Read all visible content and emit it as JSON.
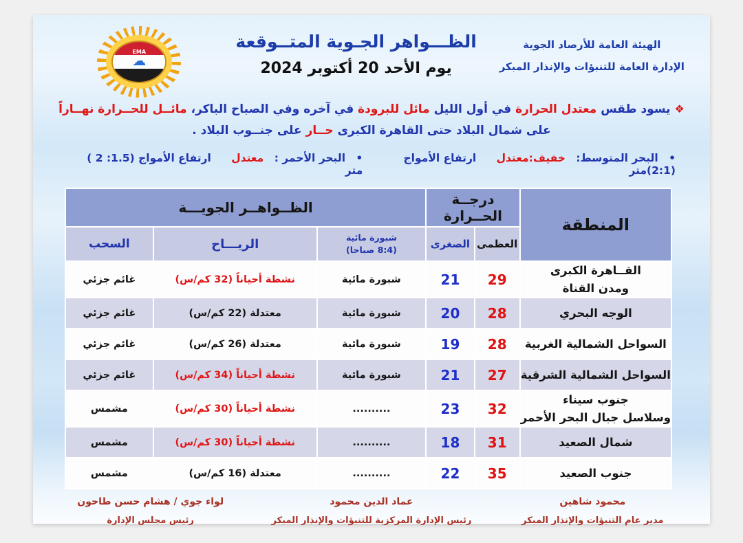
{
  "colors": {
    "outer_bg": "#f1f0f1",
    "title_blue": "#1c3ca8",
    "text_blue": "#2135ad",
    "accent_red": "#e01616",
    "max_red": "#e01212",
    "min_blue": "#1e2ec9",
    "header_bg": "#8f9ed2",
    "subheader_bg": "#c7cae3",
    "row_alt_bg": "#d5d7e9",
    "row_bg": "#fdfdfe",
    "signature_red": "#a93226",
    "sun_orange": "#f2a312",
    "sun_gold": "#ffd24a"
  },
  "header": {
    "org_line1": "الهيئة العامة للأرصاد الجوية",
    "org_line2": "الإدارة العامة للتنبؤات والإنذار المبكر",
    "title": "الظـــواهر الجـوية المتــوقعة",
    "date": "يوم  الأحد 20 أكتوبر 2024",
    "logo_text": "EMA",
    "logo_cloud": "☁"
  },
  "summary": {
    "bullet": "❖",
    "segments": [
      {
        "text": "يسود طقس",
        "red": false
      },
      {
        "text": "معتدل الحرارة",
        "red": true
      },
      {
        "text": "في أول الليل",
        "red": false
      },
      {
        "text": "مائل للبرودة",
        "red": true
      },
      {
        "text": "في آخره وفي الصباح الباكر،",
        "red": false
      },
      {
        "text": "مائــل للحــرارة نهــاراً",
        "red": true
      },
      {
        "text": "على شمال البلاد حتى القاهرة الكبرى",
        "red": false
      },
      {
        "text": "حــار",
        "red": true
      },
      {
        "text": "على جنــوب البلاد .",
        "red": false
      }
    ]
  },
  "seas": {
    "bullet": "•",
    "mediterranean": {
      "label": "البحر المتوسط:",
      "state": "خفيف:معتدل",
      "waves": "ارتفاع الأمواج (2:1)متر"
    },
    "red_sea": {
      "label": "البحر الأحمر :",
      "state": "معتدل",
      "waves": "ارتفاع الأمواج (1.5: 2 ) متر"
    }
  },
  "table": {
    "region_header": "المنطقة",
    "temp_header": "درجــة\nالحــرارة",
    "phenomena_header": "الظــواهــر الجويـــة",
    "sub_headers": {
      "max": "العظمى",
      "min": "الصغرى",
      "mist": "شبورة مائية\n(8:4 صباحا)",
      "wind": "الريـــاح",
      "clouds": "السحب"
    },
    "rows": [
      {
        "region": "القــاهرة الكبرى\nومدن القناة",
        "max": "29",
        "min": "21",
        "mist": "شبورة مائية",
        "wind": "نشطة أحياناً (32 كم/س)",
        "wind_active": true,
        "clouds": "غائم جزئي"
      },
      {
        "region": "الوجه البحري",
        "max": "28",
        "min": "20",
        "mist": "شبورة مائية",
        "wind": "معتدلة (22 كم/س)",
        "wind_active": false,
        "clouds": "غائم جزئي"
      },
      {
        "region": "السواحل الشمالية الغربية",
        "max": "28",
        "min": "19",
        "mist": "شبورة مائية",
        "wind": "معتدلة (26 كم/س)",
        "wind_active": false,
        "clouds": "غائم جزئي"
      },
      {
        "region": "السواحل الشمالية الشرقية",
        "max": "27",
        "min": "21",
        "mist": "شبورة مائية",
        "wind": "نشطة أحياناً (34 كم/س)",
        "wind_active": true,
        "clouds": "غائم جزئي"
      },
      {
        "region": "جنوب سيناء\nوسلاسل جبال البحر الأحمر",
        "max": "32",
        "min": "23",
        "mist": "..........",
        "wind": "نشطة أحياناً (30 كم/س)",
        "wind_active": true,
        "clouds": "مشمس"
      },
      {
        "region": "شمال الصعيد",
        "max": "31",
        "min": "18",
        "mist": "..........",
        "wind": "نشطة أحياناً (30 كم/س)",
        "wind_active": true,
        "clouds": "مشمس"
      },
      {
        "region": "جنوب الصعيد",
        "max": "35",
        "min": "22",
        "mist": "..........",
        "wind": "معتدلة (16 كم/س)",
        "wind_active": false,
        "clouds": "مشمس"
      }
    ]
  },
  "signatures": [
    {
      "name": "محمود شاهين",
      "title": "مدير عام التنبؤات والإنذار المبكر"
    },
    {
      "name": "عماد الدين محمود",
      "title": "رئيس الإدارة المركزية للتنبؤات والإنذار المبكر"
    },
    {
      "name": "لواء جوي / هشام حسن طاحون",
      "title": "رئيس مجلس الإدارة"
    }
  ]
}
